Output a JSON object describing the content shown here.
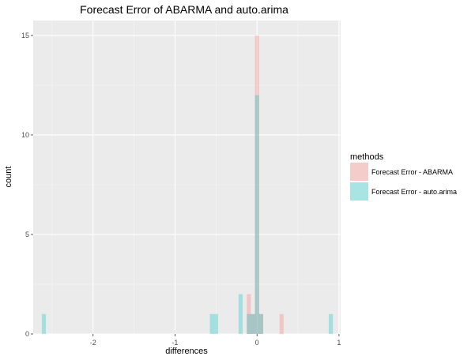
{
  "chart_data": {
    "type": "bar",
    "title": "Forecast Error of ABARMA and auto.arima",
    "xlabel": "differences",
    "ylabel": "count",
    "xlim": [
      -2.73,
      1.02
    ],
    "ylim": [
      0,
      15.75
    ],
    "x_ticks": [
      -2,
      -1,
      0,
      1
    ],
    "x_tick_labels": [
      "-2",
      "-1",
      "0",
      "1"
    ],
    "y_ticks": [
      0,
      5,
      10,
      15
    ],
    "y_tick_labels": [
      "0",
      "5",
      "10",
      "15"
    ],
    "grid": true,
    "legend": {
      "title": "methods",
      "placement": "right"
    },
    "bin_width": 0.05,
    "series": [
      {
        "name": "Forecast Error - ABARMA",
        "color": "#F8766D",
        "bins": [
          {
            "x": -0.1,
            "count": 2
          },
          {
            "x": -0.05,
            "count": 1
          },
          {
            "x": 0.0,
            "count": 15
          },
          {
            "x": 0.05,
            "count": 1
          },
          {
            "x": 0.3,
            "count": 1
          }
        ]
      },
      {
        "name": "Forecast Error - auto.arima",
        "color": "#00BFC4",
        "bins": [
          {
            "x": -2.6,
            "count": 1
          },
          {
            "x": -0.55,
            "count": 1
          },
          {
            "x": -0.5,
            "count": 1
          },
          {
            "x": -0.2,
            "count": 2
          },
          {
            "x": -0.1,
            "count": 1
          },
          {
            "x": -0.05,
            "count": 1
          },
          {
            "x": 0.0,
            "count": 12
          },
          {
            "x": 0.05,
            "count": 1
          },
          {
            "x": 0.9,
            "count": 1
          }
        ]
      }
    ]
  }
}
